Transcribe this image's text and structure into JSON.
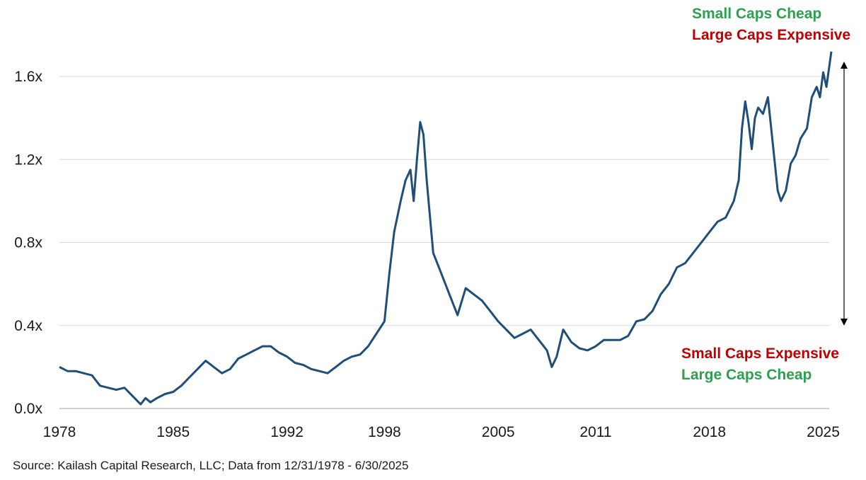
{
  "chart_data": {
    "type": "line",
    "title": "",
    "xlabel": "",
    "ylabel": "",
    "x_ticks": [
      "1978",
      "1985",
      "1992",
      "1998",
      "2005",
      "2011",
      "2018",
      "2025"
    ],
    "y_ticks": [
      "0.0x",
      "0.4x",
      "0.8x",
      "1.2x",
      "1.6x"
    ],
    "xlim": [
      1978.0,
      2025.5
    ],
    "ylim": [
      0.0,
      1.6
    ],
    "grid": "horizontal",
    "legend": "none",
    "series": [
      {
        "color": "#1f4e79",
        "x": [
          1978.0,
          1978.5,
          1979.0,
          1979.5,
          1980.0,
          1980.5,
          1981.0,
          1981.5,
          1982.0,
          1982.5,
          1983.0,
          1983.3,
          1983.6,
          1984.0,
          1984.5,
          1985.0,
          1985.5,
          1986.0,
          1986.5,
          1987.0,
          1987.5,
          1988.0,
          1988.5,
          1989.0,
          1989.5,
          1990.0,
          1990.5,
          1991.0,
          1991.5,
          1992.0,
          1992.5,
          1993.0,
          1993.5,
          1994.0,
          1994.5,
          1995.0,
          1995.5,
          1996.0,
          1996.5,
          1997.0,
          1997.5,
          1998.0,
          1998.3,
          1998.6,
          1999.0,
          1999.3,
          1999.6,
          1999.8,
          2000.0,
          2000.2,
          2000.4,
          2000.6,
          2001.0,
          2001.5,
          2002.0,
          2002.5,
          2003.0,
          2003.5,
          2004.0,
          2004.5,
          2005.0,
          2005.5,
          2006.0,
          2006.5,
          2007.0,
          2007.5,
          2008.0,
          2008.3,
          2008.6,
          2009.0,
          2009.5,
          2010.0,
          2010.5,
          2011.0,
          2011.5,
          2012.0,
          2012.5,
          2013.0,
          2013.5,
          2014.0,
          2014.5,
          2015.0,
          2015.5,
          2016.0,
          2016.5,
          2017.0,
          2017.5,
          2018.0,
          2018.5,
          2019.0,
          2019.5,
          2019.8,
          2020.0,
          2020.2,
          2020.4,
          2020.6,
          2020.8,
          2021.0,
          2021.3,
          2021.6,
          2021.8,
          2022.0,
          2022.2,
          2022.4,
          2022.7,
          2023.0,
          2023.3,
          2023.6,
          2024.0,
          2024.3,
          2024.6,
          2024.8,
          2025.0,
          2025.2,
          2025.5
        ],
        "values": [
          0.2,
          0.18,
          0.18,
          0.17,
          0.16,
          0.11,
          0.1,
          0.09,
          0.1,
          0.06,
          0.02,
          0.05,
          0.03,
          0.05,
          0.07,
          0.08,
          0.11,
          0.15,
          0.19,
          0.23,
          0.2,
          0.17,
          0.19,
          0.24,
          0.26,
          0.28,
          0.3,
          0.3,
          0.27,
          0.25,
          0.22,
          0.21,
          0.19,
          0.18,
          0.17,
          0.2,
          0.23,
          0.25,
          0.26,
          0.3,
          0.36,
          0.42,
          0.65,
          0.85,
          1.0,
          1.1,
          1.15,
          1.0,
          1.2,
          1.38,
          1.32,
          1.1,
          0.75,
          0.65,
          0.55,
          0.45,
          0.58,
          0.55,
          0.52,
          0.47,
          0.42,
          0.38,
          0.34,
          0.36,
          0.38,
          0.33,
          0.28,
          0.2,
          0.25,
          0.38,
          0.32,
          0.29,
          0.28,
          0.3,
          0.33,
          0.33,
          0.33,
          0.35,
          0.42,
          0.43,
          0.47,
          0.55,
          0.6,
          0.68,
          0.7,
          0.75,
          0.8,
          0.85,
          0.9,
          0.92,
          1.0,
          1.1,
          1.35,
          1.48,
          1.38,
          1.25,
          1.4,
          1.45,
          1.42,
          1.5,
          1.35,
          1.2,
          1.05,
          1.0,
          1.05,
          1.18,
          1.22,
          1.3,
          1.35,
          1.5,
          1.55,
          1.5,
          1.62,
          1.55,
          1.72
        ]
      }
    ],
    "annotations": [
      {
        "text": "Small Caps Cheap",
        "color": "#2e9e4f"
      },
      {
        "text": "Large Caps Expensive",
        "color": "#c00000"
      },
      {
        "text": "Small Caps Expensive",
        "color": "#c00000"
      },
      {
        "text": "Large Caps Cheap",
        "color": "#2e9e4f"
      }
    ],
    "source": "Source: Kailash Capital Research, LLC; Data from 12/31/1978 - 6/30/2025"
  }
}
